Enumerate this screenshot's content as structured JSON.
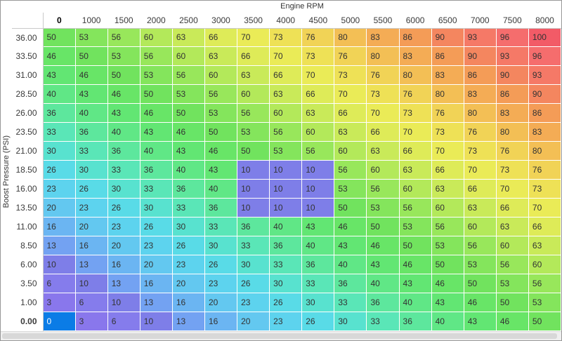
{
  "axes": {
    "x_title": "Engine RPM",
    "y_title": "Boost Pressure (PSI)"
  },
  "table": {
    "columns": [
      "0",
      "1000",
      "1500",
      "2000",
      "2500",
      "3000",
      "3500",
      "4000",
      "4500",
      "5000",
      "5500",
      "6000",
      "6500",
      "7000",
      "7500",
      "8000"
    ],
    "rows": [
      {
        "label": "36.00",
        "values": [
          50,
          53,
          56,
          60,
          63,
          66,
          70,
          73,
          76,
          80,
          83,
          86,
          90,
          93,
          96,
          100
        ]
      },
      {
        "label": "33.50",
        "values": [
          46,
          50,
          53,
          56,
          60,
          63,
          66,
          70,
          73,
          76,
          80,
          83,
          86,
          90,
          93,
          96
        ]
      },
      {
        "label": "31.00",
        "values": [
          43,
          46,
          50,
          53,
          56,
          60,
          63,
          66,
          70,
          73,
          76,
          80,
          83,
          86,
          90,
          93
        ]
      },
      {
        "label": "28.50",
        "values": [
          40,
          43,
          46,
          50,
          53,
          56,
          60,
          63,
          66,
          70,
          73,
          76,
          80,
          83,
          86,
          90
        ]
      },
      {
        "label": "26.00",
        "values": [
          36,
          40,
          43,
          46,
          50,
          53,
          56,
          60,
          63,
          66,
          70,
          73,
          76,
          80,
          83,
          86
        ]
      },
      {
        "label": "23.50",
        "values": [
          33,
          36,
          40,
          43,
          46,
          50,
          53,
          56,
          60,
          63,
          66,
          70,
          73,
          76,
          80,
          83
        ]
      },
      {
        "label": "21.00",
        "values": [
          30,
          33,
          36,
          40,
          43,
          46,
          50,
          53,
          56,
          60,
          63,
          66,
          70,
          73,
          76,
          80
        ]
      },
      {
        "label": "18.50",
        "values": [
          26,
          30,
          33,
          36,
          40,
          43,
          10,
          10,
          10,
          56,
          60,
          63,
          66,
          70,
          73,
          76
        ]
      },
      {
        "label": "16.00",
        "values": [
          23,
          26,
          30,
          33,
          36,
          40,
          10,
          10,
          10,
          53,
          56,
          60,
          63,
          66,
          70,
          73
        ]
      },
      {
        "label": "13.50",
        "values": [
          20,
          23,
          26,
          30,
          33,
          36,
          10,
          10,
          10,
          50,
          53,
          56,
          60,
          63,
          66,
          70
        ]
      },
      {
        "label": "11.00",
        "values": [
          16,
          20,
          23,
          26,
          30,
          33,
          36,
          40,
          43,
          46,
          50,
          53,
          56,
          60,
          63,
          66
        ]
      },
      {
        "label": "8.50",
        "values": [
          13,
          16,
          20,
          23,
          26,
          30,
          33,
          36,
          40,
          43,
          46,
          50,
          53,
          56,
          60,
          63
        ]
      },
      {
        "label": "6.00",
        "values": [
          10,
          13,
          16,
          20,
          23,
          26,
          30,
          33,
          36,
          40,
          43,
          46,
          50,
          53,
          56,
          60
        ]
      },
      {
        "label": "3.50",
        "values": [
          6,
          10,
          13,
          16,
          20,
          23,
          26,
          30,
          33,
          36,
          40,
          43,
          46,
          50,
          53,
          56
        ]
      },
      {
        "label": "1.00",
        "values": [
          3,
          6,
          10,
          13,
          16,
          20,
          23,
          26,
          30,
          33,
          36,
          40,
          43,
          46,
          50,
          53
        ]
      },
      {
        "label": "0.00",
        "values": [
          0,
          3,
          6,
          10,
          13,
          16,
          20,
          23,
          26,
          30,
          33,
          36,
          40,
          43,
          46,
          50
        ]
      }
    ]
  },
  "selection": {
    "row_label": "0.00",
    "col_label": "0",
    "background": "#0b7ce6",
    "text_color": "#ffffff"
  },
  "value_colors": {
    "0": "#8679ec",
    "3": "#8977ec",
    "6": "#857cec",
    "10": "#7e7ee8",
    "13": "#73a2f2",
    "16": "#6bb5f2",
    "20": "#63c8f0",
    "23": "#5dd3ee",
    "26": "#59dbe7",
    "30": "#58e2cf",
    "33": "#5ae6b7",
    "36": "#5de79d",
    "40": "#60e786",
    "43": "#62e673",
    "46": "#68e567",
    "50": "#71e35e",
    "53": "#84e55c",
    "56": "#98e75b",
    "60": "#b3e95a",
    "63": "#c9ea59",
    "66": "#deeb58",
    "70": "#eaeb57",
    "73": "#eee156",
    "76": "#f1d356",
    "80": "#f3bf55",
    "83": "#f4ac55",
    "86": "#f49c57",
    "90": "#f4865f",
    "93": "#f57967",
    "96": "#f56d6d",
    "100": "#f25b67"
  },
  "colors": {
    "cell_text": "#333333",
    "header_text": "#3a3a3a",
    "header_selected_text": "#000000",
    "grid_line": "#c9c9c9",
    "cell_dash": "#ffffff",
    "window_border": "#989898",
    "scrollbar_track": "#efefef",
    "scrollbar_thumb": "#d8d8d8",
    "background": "#ffffff"
  }
}
